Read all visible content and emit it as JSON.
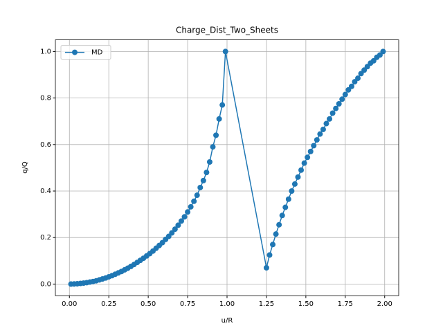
{
  "chart_data": {
    "type": "line",
    "title": "Charge_Dist_Two_Sheets",
    "xlabel": "u/R",
    "ylabel": "q/Q",
    "x": [
      0.01,
      0.03,
      0.05,
      0.07,
      0.09,
      0.11,
      0.13,
      0.15,
      0.17,
      0.19,
      0.21,
      0.23,
      0.25,
      0.27,
      0.29,
      0.31,
      0.33,
      0.35,
      0.37,
      0.39,
      0.41,
      0.43,
      0.45,
      0.47,
      0.49,
      0.51,
      0.53,
      0.55,
      0.57,
      0.59,
      0.61,
      0.63,
      0.65,
      0.67,
      0.69,
      0.71,
      0.73,
      0.75,
      0.77,
      0.79,
      0.81,
      0.83,
      0.85,
      0.87,
      0.89,
      0.91,
      0.93,
      0.95,
      0.97,
      0.99,
      1.25,
      1.27,
      1.29,
      1.31,
      1.33,
      1.35,
      1.37,
      1.39,
      1.41,
      1.43,
      1.45,
      1.47,
      1.49,
      1.51,
      1.53,
      1.55,
      1.57,
      1.59,
      1.61,
      1.63,
      1.65,
      1.67,
      1.69,
      1.71,
      1.73,
      1.75,
      1.77,
      1.79,
      1.81,
      1.83,
      1.85,
      1.87,
      1.89,
      1.91,
      1.93,
      1.95,
      1.97,
      1.99
    ],
    "series": [
      {
        "name": "MD",
        "color": "#1f77b4",
        "values": [
          0.0,
          0.0005,
          0.0013,
          0.0025,
          0.004,
          0.006,
          0.0085,
          0.011,
          0.014,
          0.018,
          0.022,
          0.026,
          0.031,
          0.036,
          0.042,
          0.048,
          0.054,
          0.061,
          0.068,
          0.076,
          0.084,
          0.093,
          0.102,
          0.111,
          0.121,
          0.131,
          0.142,
          0.154,
          0.166,
          0.178,
          0.192,
          0.205,
          0.22,
          0.236,
          0.253,
          0.271,
          0.289,
          0.31,
          0.332,
          0.356,
          0.382,
          0.415,
          0.445,
          0.48,
          0.525,
          0.59,
          0.64,
          0.71,
          0.77,
          1.0,
          0.07,
          0.125,
          0.17,
          0.215,
          0.255,
          0.295,
          0.33,
          0.365,
          0.4,
          0.43,
          0.46,
          0.49,
          0.52,
          0.545,
          0.57,
          0.595,
          0.62,
          0.645,
          0.665,
          0.69,
          0.71,
          0.735,
          0.755,
          0.775,
          0.795,
          0.815,
          0.835,
          0.85,
          0.87,
          0.885,
          0.905,
          0.92,
          0.935,
          0.95,
          0.96,
          0.975,
          0.985,
          1.0
        ]
      }
    ],
    "xlim": [
      -0.089,
      2.089
    ],
    "ylim": [
      -0.05,
      1.05
    ],
    "xticks": [
      {
        "value": 0,
        "label": "0.00"
      },
      {
        "value": 0.25,
        "label": "0.25"
      },
      {
        "value": 0.5,
        "label": "0.50"
      },
      {
        "value": 0.75,
        "label": "0.75"
      },
      {
        "value": 1,
        "label": "1.00"
      },
      {
        "value": 1.25,
        "label": "1.25"
      },
      {
        "value": 1.5,
        "label": "1.50"
      },
      {
        "value": 1.75,
        "label": "1.75"
      },
      {
        "value": 2,
        "label": "2.00"
      }
    ],
    "yticks": [
      {
        "value": 0,
        "label": "0.0"
      },
      {
        "value": 0.2,
        "label": "0.2"
      },
      {
        "value": 0.4,
        "label": "0.4"
      },
      {
        "value": 0.6,
        "label": "0.6"
      },
      {
        "value": 0.8,
        "label": "0.8"
      },
      {
        "value": 1,
        "label": "1.0"
      }
    ],
    "grid": true,
    "legend": "upper-left"
  }
}
